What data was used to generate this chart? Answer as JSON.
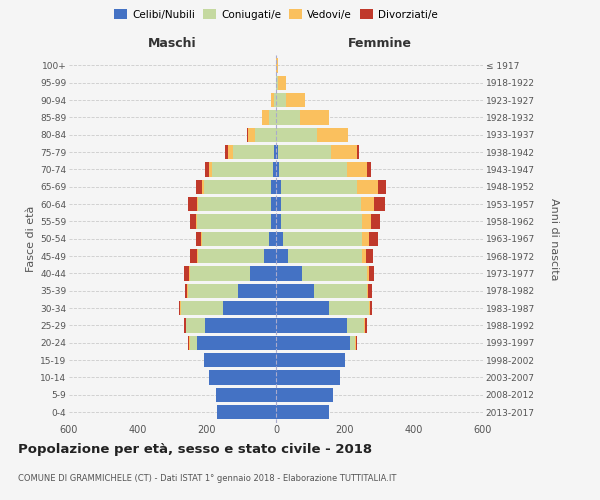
{
  "age_groups": [
    "0-4",
    "5-9",
    "10-14",
    "15-19",
    "20-24",
    "25-29",
    "30-34",
    "35-39",
    "40-44",
    "45-49",
    "50-54",
    "55-59",
    "60-64",
    "65-69",
    "70-74",
    "75-79",
    "80-84",
    "85-89",
    "90-94",
    "95-99",
    "100+"
  ],
  "birth_years": [
    "2013-2017",
    "2008-2012",
    "2003-2007",
    "1998-2002",
    "1993-1997",
    "1988-1992",
    "1983-1987",
    "1978-1982",
    "1973-1977",
    "1968-1972",
    "1963-1967",
    "1958-1962",
    "1953-1957",
    "1948-1952",
    "1943-1947",
    "1938-1942",
    "1933-1937",
    "1928-1932",
    "1923-1927",
    "1918-1922",
    "≤ 1917"
  ],
  "male_celibe": [
    170,
    175,
    195,
    210,
    230,
    205,
    155,
    110,
    75,
    35,
    20,
    15,
    15,
    15,
    10,
    5,
    0,
    0,
    0,
    0,
    0
  ],
  "male_coniugato": [
    0,
    0,
    0,
    0,
    20,
    55,
    120,
    145,
    175,
    190,
    195,
    215,
    210,
    195,
    175,
    120,
    60,
    20,
    5,
    0,
    0
  ],
  "male_vedovo": [
    0,
    0,
    0,
    0,
    2,
    2,
    2,
    2,
    3,
    3,
    3,
    3,
    5,
    5,
    10,
    15,
    20,
    20,
    10,
    0,
    0
  ],
  "male_divorziato": [
    0,
    0,
    0,
    0,
    2,
    5,
    5,
    8,
    15,
    20,
    15,
    15,
    25,
    18,
    10,
    8,
    3,
    0,
    0,
    0,
    0
  ],
  "female_celibe": [
    155,
    165,
    185,
    200,
    215,
    205,
    155,
    110,
    75,
    35,
    20,
    15,
    15,
    15,
    10,
    5,
    0,
    0,
    0,
    0,
    0
  ],
  "female_coniugata": [
    0,
    0,
    0,
    0,
    15,
    50,
    115,
    155,
    190,
    215,
    230,
    235,
    230,
    220,
    195,
    155,
    120,
    70,
    30,
    5,
    0
  ],
  "female_vedova": [
    0,
    0,
    0,
    0,
    2,
    3,
    3,
    3,
    5,
    10,
    20,
    25,
    40,
    60,
    60,
    75,
    90,
    85,
    55,
    25,
    5
  ],
  "female_divorziata": [
    0,
    0,
    0,
    0,
    2,
    5,
    5,
    10,
    15,
    20,
    25,
    25,
    30,
    25,
    10,
    5,
    0,
    0,
    0,
    0,
    0
  ],
  "colors": {
    "celibe": "#4472C4",
    "coniugato": "#C5D9A0",
    "vedovo": "#FAC05E",
    "divorziato": "#C0392B"
  },
  "xlim": 600,
  "title": "Popolazione per età, sesso e stato civile - 2018",
  "subtitle": "COMUNE DI GRAMMICHELE (CT) - Dati ISTAT 1° gennaio 2018 - Elaborazione TUTTITALIA.IT",
  "ylabel_left": "Fasce di età",
  "ylabel_right": "Anni di nascita",
  "xlabel_left": "Maschi",
  "xlabel_right": "Femmine",
  "background_color": "#f5f5f5"
}
